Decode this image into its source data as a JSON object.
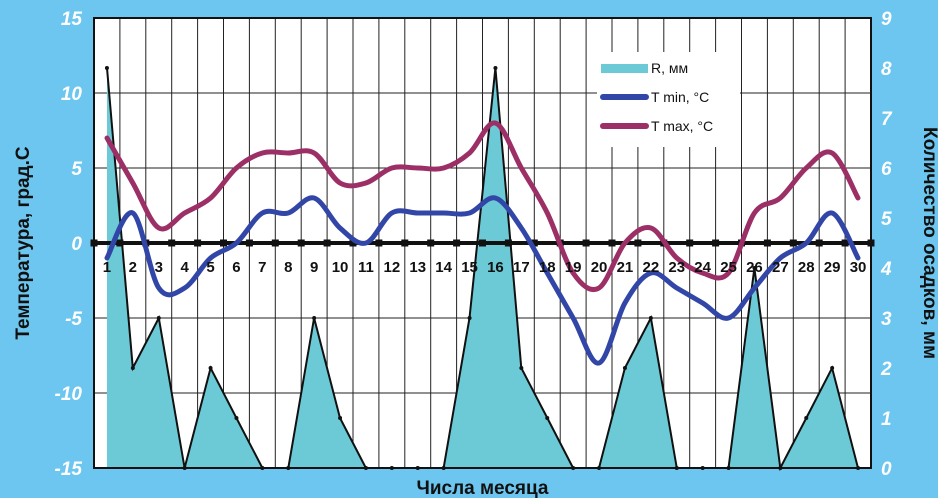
{
  "chart_data": {
    "type": "line",
    "xlabel": "Числа месяца",
    "ylabel_left": "Температура, град.С",
    "ylabel_right": "Количество осадков, мм",
    "x": [
      1,
      2,
      3,
      4,
      5,
      6,
      7,
      8,
      9,
      10,
      11,
      12,
      13,
      14,
      15,
      16,
      17,
      18,
      19,
      20,
      21,
      22,
      23,
      24,
      25,
      26,
      27,
      28,
      29,
      30
    ],
    "ylim_left": [
      -15,
      15
    ],
    "yticks_left": [
      "15",
      "10",
      "5",
      "0",
      "-5",
      "-10",
      "-15"
    ],
    "ylim_right": [
      0,
      9
    ],
    "yticks_right": [
      "9",
      "8",
      "7",
      "6",
      "5",
      "4",
      "3",
      "2",
      "1",
      "0"
    ],
    "grid": true,
    "legend_position": "top-right",
    "series": [
      {
        "name": "R, мм",
        "kind": "area",
        "axis": "right",
        "color": "#6ccad6",
        "values": [
          8,
          2,
          3,
          0,
          2,
          1,
          0,
          0,
          3,
          1,
          0,
          0,
          0,
          0,
          3,
          8,
          2,
          1,
          0,
          0,
          2,
          3,
          0,
          0,
          0,
          4,
          0,
          1,
          2,
          0
        ]
      },
      {
        "name": "T min, °C",
        "kind": "line",
        "axis": "left",
        "color": "#3246a8",
        "values": [
          -1,
          2,
          -3,
          -3,
          -1,
          0,
          2,
          2,
          3,
          1,
          0,
          2,
          2,
          2,
          2,
          3,
          1,
          -2,
          -5,
          -8,
          -4,
          -2,
          -3,
          -4,
          -5,
          -3,
          -1,
          0,
          2,
          -1
        ]
      },
      {
        "name": "T max, °C",
        "kind": "line",
        "axis": "left",
        "color": "#9c2f65",
        "values": [
          7,
          4,
          1,
          2,
          3,
          5,
          6,
          6,
          6,
          4,
          4,
          5,
          5,
          5,
          6,
          8,
          5,
          2,
          -2,
          -3,
          0,
          1,
          -1,
          -2,
          -2,
          2,
          3,
          5,
          6,
          3
        ]
      }
    ]
  }
}
